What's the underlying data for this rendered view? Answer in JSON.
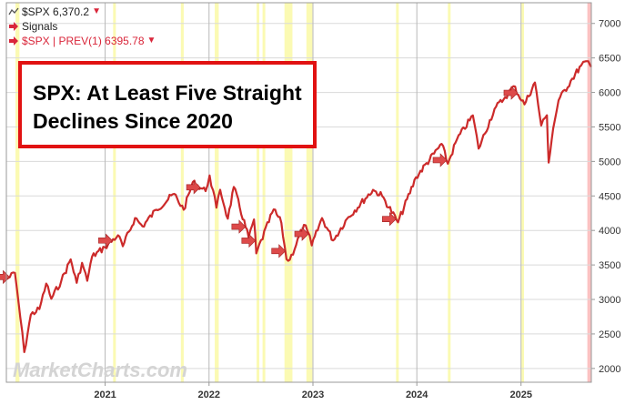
{
  "legend": {
    "items": [
      {
        "label": "$SPX 6,370.2",
        "color": "#222222",
        "marker": "▼",
        "marker_color": "#d9263a",
        "icon": "line-icon"
      },
      {
        "label": "Signals",
        "color": "#222222",
        "marker": "",
        "marker_color": "#d9263a",
        "icon": "arrow-icon"
      },
      {
        "label": "$SPX | PREV(1) 6395.78",
        "color": "#d9263a",
        "marker": "▼",
        "marker_color": "#d9263a",
        "icon": "arrow-icon"
      }
    ]
  },
  "callout": {
    "lines": [
      "SPX: At Least Five Straight",
      "Declines Since 2020"
    ],
    "border_color": "#e11212"
  },
  "watermark": "MarketCharts.com",
  "colors": {
    "line": "#cc2a2a",
    "signal": "#dd4a4a",
    "band": "#fbfab3",
    "band_last": "#fbc2c2",
    "grid": "#dadada"
  },
  "chart_data": {
    "type": "line",
    "title": "",
    "xlabel": "",
    "ylabel": "",
    "ylim": [
      1800,
      7300
    ],
    "xlim": [
      "2020-01-20",
      "2025-09-05"
    ],
    "grid": true,
    "yaxis_position": "right",
    "yticks": [
      2000,
      2500,
      3000,
      3500,
      4000,
      4500,
      5000,
      5500,
      6000,
      6500,
      7000
    ],
    "xticks": [
      {
        "date": "2021-01-01",
        "label": "2021"
      },
      {
        "date": "2022-01-01",
        "label": "2022"
      },
      {
        "date": "2023-01-01",
        "label": "2023"
      },
      {
        "date": "2024-01-01",
        "label": "2024"
      },
      {
        "date": "2025-01-01",
        "label": "2025"
      }
    ],
    "series": [
      {
        "x": [
          "2020-01-20",
          "2020-02-19",
          "2020-03-09",
          "2020-03-23",
          "2020-04-15",
          "2020-05-15",
          "2020-06-08",
          "2020-06-26",
          "2020-07-31",
          "2020-09-02",
          "2020-09-23",
          "2020-10-12",
          "2020-10-30",
          "2020-11-16",
          "2020-12-31",
          "2021-02-15",
          "2021-03-04",
          "2021-04-16",
          "2021-05-12",
          "2021-06-30",
          "2021-08-31",
          "2021-10-04",
          "2021-11-05",
          "2021-12-20",
          "2022-01-03",
          "2022-01-27",
          "2022-02-09",
          "2022-03-08",
          "2022-03-29",
          "2022-05-20",
          "2022-06-08",
          "2022-06-16",
          "2022-08-16",
          "2022-09-12",
          "2022-09-30",
          "2022-10-12",
          "2022-11-30",
          "2022-12-13",
          "2022-12-28",
          "2023-02-02",
          "2023-03-13",
          "2023-05-01",
          "2023-07-31",
          "2023-09-01",
          "2023-10-27",
          "2023-12-29",
          "2024-03-28",
          "2024-04-19",
          "2024-05-21",
          "2024-07-16",
          "2024-08-05",
          "2024-09-30",
          "2024-11-06",
          "2024-12-06",
          "2025-01-13",
          "2025-02-19",
          "2025-03-13",
          "2025-04-02",
          "2025-04-08",
          "2025-04-24",
          "2025-05-13",
          "2025-06-30",
          "2025-07-31",
          "2025-08-15",
          "2025-09-05"
        ],
        "values": [
          3290,
          3386,
          2740,
          2237,
          2780,
          2860,
          3230,
          3010,
          3270,
          3580,
          3240,
          3530,
          3270,
          3620,
          3756,
          3930,
          3770,
          4180,
          4060,
          4300,
          4530,
          4300,
          4700,
          4570,
          4796,
          4330,
          4590,
          4170,
          4630,
          3900,
          4160,
          3667,
          4305,
          4110,
          3585,
          3577,
          4080,
          3990,
          3783,
          4180,
          3855,
          4170,
          4588,
          4500,
          4117,
          4770,
          5254,
          4967,
          5320,
          5667,
          5186,
          5762,
          5929,
          6090,
          5827,
          6144,
          5521,
          5670,
          4982,
          5480,
          5886,
          6200,
          6389,
          6450,
          6370
        ]
      }
    ],
    "signals": [
      "2020-01-31",
      "2021-01-26",
      "2021-12-01",
      "2022-05-09",
      "2022-06-13",
      "2022-09-26",
      "2022-12-16",
      "2023-10-20",
      "2024-04-15",
      "2024-12-20"
    ],
    "bands": [
      {
        "start": "2020-02-21",
        "end": "2020-03-06"
      },
      {
        "start": "2021-01-29",
        "end": "2021-02-05"
      },
      {
        "start": "2021-09-24",
        "end": "2021-10-04"
      },
      {
        "start": "2022-01-21",
        "end": "2022-02-04"
      },
      {
        "start": "2022-06-17",
        "end": "2022-06-24"
      },
      {
        "start": "2022-07-08",
        "end": "2022-07-15"
      },
      {
        "start": "2022-09-23",
        "end": "2022-10-21"
      },
      {
        "start": "2022-12-09",
        "end": "2022-12-30"
      },
      {
        "start": "2023-10-20",
        "end": "2023-10-27"
      },
      {
        "start": "2024-04-19",
        "end": "2024-04-26"
      },
      {
        "start": "2025-01-02",
        "end": "2025-01-09"
      },
      {
        "start": "2025-08-22",
        "end": "2025-09-05",
        "highlight": "pink"
      }
    ]
  }
}
